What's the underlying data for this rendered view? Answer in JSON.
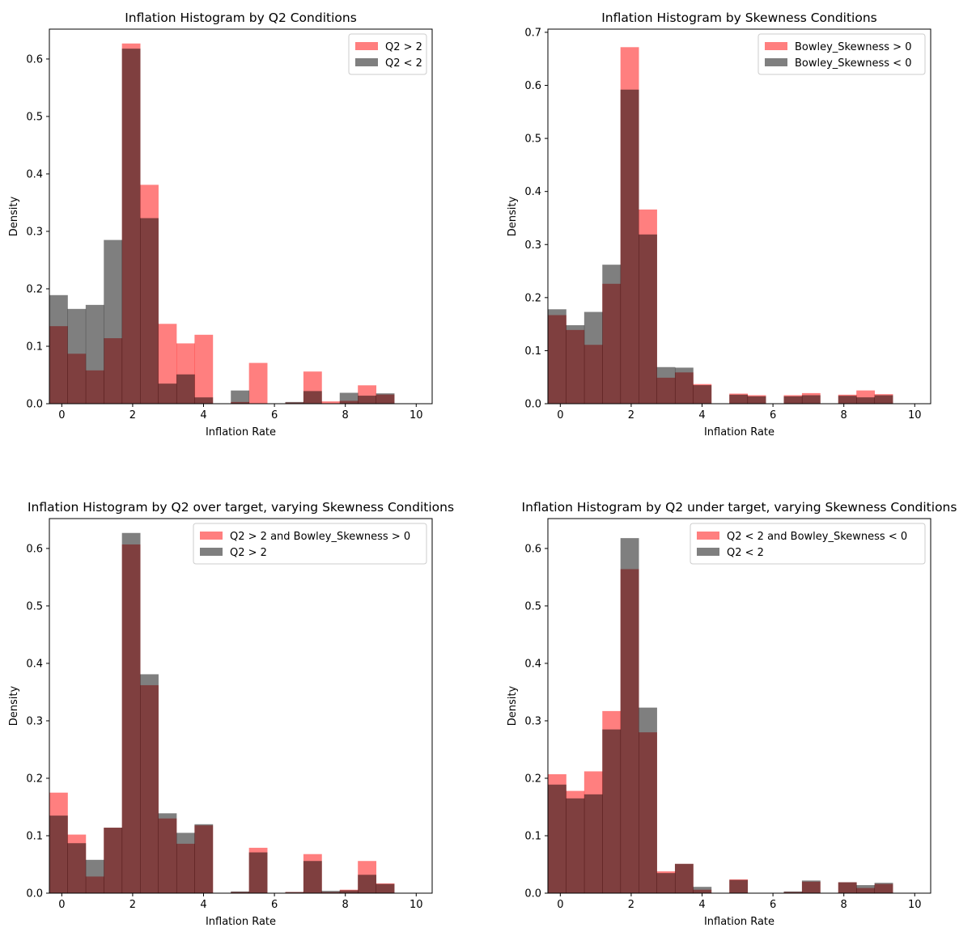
{
  "chart_data": [
    {
      "type": "bar",
      "title": "Inflation Histogram by Q2 Conditions",
      "xlabel": "Inflation Rate",
      "ylabel": "Density",
      "xlim": [
        -0.35,
        10.45
      ],
      "ylim": [
        0,
        0.652
      ],
      "xticks": [
        0,
        2,
        4,
        6,
        8,
        10
      ],
      "yticks": [
        0.0,
        0.1,
        0.2,
        0.3,
        0.4,
        0.5,
        0.6
      ],
      "ytick_decimals": 1,
      "legend_position": "top-right",
      "bin_start": -0.35,
      "bin_width": 0.512,
      "series": [
        {
          "name": "Q2 > 2",
          "color": "#ff0000",
          "alpha": 0.5,
          "values": [
            0.135,
            0.087,
            0.058,
            0.114,
            0.627,
            0.381,
            0.139,
            0.105,
            0.12,
            0,
            0.003,
            0.071,
            0,
            0.002,
            0.056,
            0.004,
            0.005,
            0.032,
            0.016
          ]
        },
        {
          "name": "Q2 < 2",
          "color": "#000000",
          "alpha": 0.5,
          "values": [
            0.189,
            0.165,
            0.172,
            0.285,
            0.618,
            0.323,
            0.035,
            0.051,
            0.011,
            0,
            0.023,
            0,
            0,
            0.003,
            0.022,
            0,
            0.019,
            0.014,
            0.018
          ]
        }
      ]
    },
    {
      "type": "bar",
      "title": "Inflation Histogram by Skewness Conditions",
      "xlabel": "Inflation Rate",
      "ylabel": "Density",
      "xlim": [
        -0.35,
        10.45
      ],
      "ylim": [
        0,
        0.706
      ],
      "xticks": [
        0,
        2,
        4,
        6,
        8,
        10
      ],
      "yticks": [
        0.0,
        0.1,
        0.2,
        0.3,
        0.4,
        0.5,
        0.6,
        0.7
      ],
      "ytick_decimals": 1,
      "legend_position": "top-right",
      "bin_start": -0.35,
      "bin_width": 0.512,
      "series": [
        {
          "name": "Bowley_Skewness > 0",
          "color": "#ff0000",
          "alpha": 0.5,
          "values": [
            0.167,
            0.139,
            0.111,
            0.226,
            0.672,
            0.366,
            0.049,
            0.059,
            0.037,
            0,
            0.019,
            0.016,
            0,
            0.016,
            0.02,
            0,
            0.017,
            0.025,
            0.018
          ]
        },
        {
          "name": "Bowley_Skewness < 0",
          "color": "#000000",
          "alpha": 0.5,
          "values": [
            0.178,
            0.148,
            0.173,
            0.262,
            0.592,
            0.319,
            0.069,
            0.068,
            0.035,
            0,
            0.017,
            0.014,
            0,
            0.014,
            0.016,
            0,
            0.015,
            0.012,
            0.016
          ]
        }
      ]
    },
    {
      "type": "bar",
      "title": "Inflation Histogram by Q2 over target, varying Skewness Conditions",
      "xlabel": "Inflation Rate",
      "ylabel": "Density",
      "xlim": [
        -0.35,
        10.45
      ],
      "ylim": [
        0,
        0.652
      ],
      "xticks": [
        0,
        2,
        4,
        6,
        8,
        10
      ],
      "yticks": [
        0.0,
        0.1,
        0.2,
        0.3,
        0.4,
        0.5,
        0.6
      ],
      "ytick_decimals": 1,
      "legend_position": "top-right",
      "bin_start": -0.35,
      "bin_width": 0.512,
      "series": [
        {
          "name": "Q2 > 2 and Bowley_Skewness > 0",
          "color": "#ff0000",
          "alpha": 0.5,
          "values": [
            0.175,
            0.102,
            0.029,
            0.114,
            0.607,
            0.362,
            0.13,
            0.086,
            0.118,
            0,
            0.002,
            0.079,
            0,
            0.002,
            0.068,
            0.002,
            0.006,
            0.056,
            0.017
          ]
        },
        {
          "name": "Q2 > 2",
          "color": "#000000",
          "alpha": 0.5,
          "values": [
            0.135,
            0.087,
            0.058,
            0.114,
            0.627,
            0.381,
            0.139,
            0.105,
            0.12,
            0,
            0.003,
            0.071,
            0,
            0.002,
            0.056,
            0.004,
            0.005,
            0.032,
            0.016
          ]
        }
      ]
    },
    {
      "type": "bar",
      "title": "Inflation Histogram by Q2 under target, varying Skewness Conditions",
      "xlabel": "Inflation Rate",
      "ylabel": "Density",
      "xlim": [
        -0.35,
        10.45
      ],
      "ylim": [
        0,
        0.652
      ],
      "xticks": [
        0,
        2,
        4,
        6,
        8,
        10
      ],
      "yticks": [
        0.0,
        0.1,
        0.2,
        0.3,
        0.4,
        0.5,
        0.6
      ],
      "ytick_decimals": 1,
      "legend_position": "top-right",
      "bin_start": -0.35,
      "bin_width": 0.512,
      "series": [
        {
          "name": "Q2 < 2 and Bowley_Skewness < 0",
          "color": "#ff0000",
          "alpha": 0.5,
          "values": [
            0.207,
            0.178,
            0.212,
            0.317,
            0.564,
            0.28,
            0.038,
            0.051,
            0.006,
            0,
            0.024,
            0,
            0,
            0.002,
            0.02,
            0,
            0.019,
            0.009,
            0.016
          ]
        },
        {
          "name": "Q2 < 2",
          "color": "#000000",
          "alpha": 0.5,
          "values": [
            0.189,
            0.165,
            0.172,
            0.285,
            0.618,
            0.323,
            0.035,
            0.051,
            0.011,
            0,
            0.023,
            0,
            0,
            0.003,
            0.022,
            0,
            0.019,
            0.014,
            0.018
          ]
        }
      ]
    }
  ]
}
